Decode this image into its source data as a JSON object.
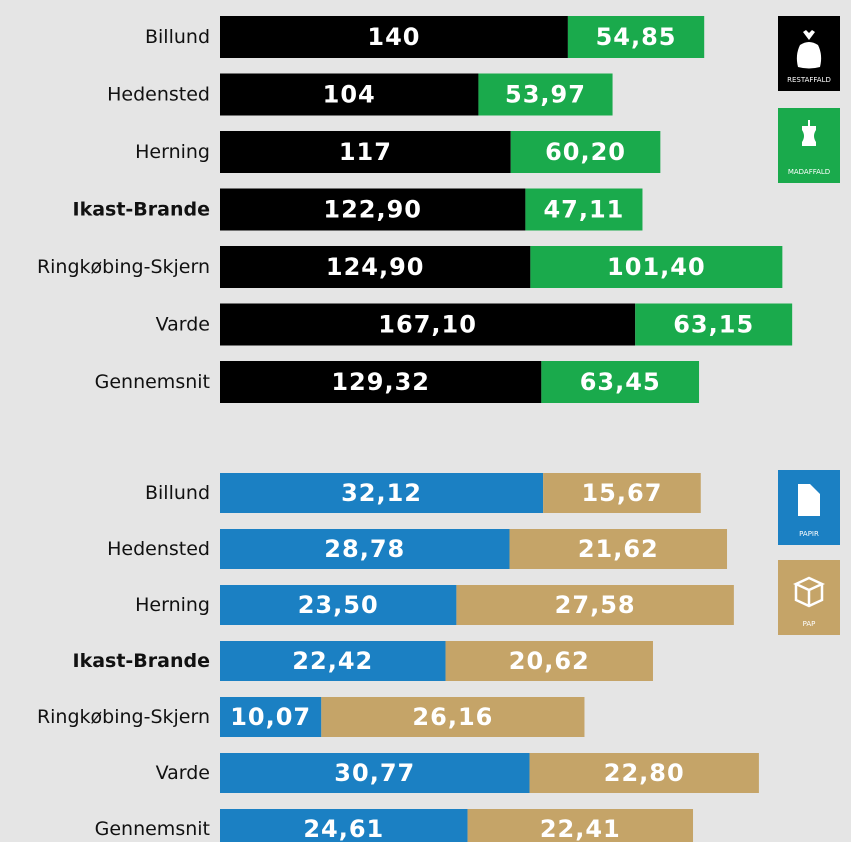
{
  "chart_data": [
    {
      "type": "stacked-bar",
      "categories": [
        "Billund",
        "Hedensted",
        "Herning",
        "Ikast-Brande",
        "Ringkøbing-Skjern",
        "Varde",
        "Gennemsnit"
      ],
      "highlight": 3,
      "series": [
        {
          "name": "RESTAFFALD",
          "color": "#000000",
          "values": [
            140,
            104,
            117,
            122.9,
            124.9,
            167.1,
            129.32
          ],
          "value_labels": [
            "140",
            "104",
            "117",
            "122,90",
            "124,90",
            "167,10",
            "129,32"
          ]
        },
        {
          "name": "MADAFFALD",
          "color": "#1aaa4c",
          "values": [
            54.85,
            53.97,
            60.2,
            47.11,
            101.4,
            63.15,
            63.45
          ],
          "value_labels": [
            "54,85",
            "53,97",
            "60,20",
            "47,11",
            "101,40",
            "63,15",
            "63,45"
          ]
        }
      ]
    },
    {
      "type": "stacked-bar",
      "categories": [
        "Billund",
        "Hedensted",
        "Herning",
        "Ikast-Brande",
        "Ringkøbing-Skjern",
        "Varde",
        "Gennemsnit"
      ],
      "highlight": 3,
      "series": [
        {
          "name": "PAPIR",
          "color": "#1b80c3",
          "values": [
            32.12,
            28.78,
            23.5,
            22.42,
            10.07,
            30.77,
            24.61
          ],
          "value_labels": [
            "32,12",
            "28,78",
            "23,50",
            "22,42",
            "10,07",
            "30,77",
            "24,61"
          ]
        },
        {
          "name": "PAP",
          "color": "#c5a468",
          "values": [
            15.67,
            21.62,
            27.58,
            20.62,
            26.16,
            22.8,
            22.41
          ],
          "value_labels": [
            "15,67",
            "21,62",
            "27,58",
            "20,62",
            "26,16",
            "22,80",
            "22,41"
          ]
        }
      ]
    }
  ]
}
